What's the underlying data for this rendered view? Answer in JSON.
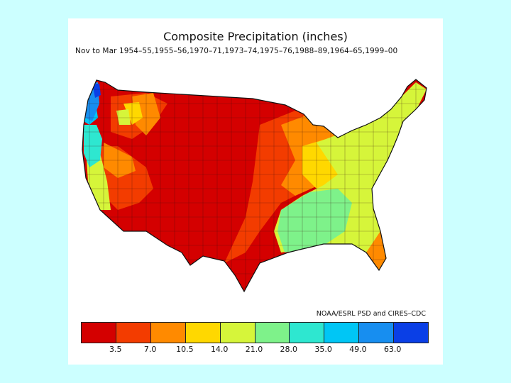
{
  "map": {
    "title": "Composite Precipitation (inches)",
    "subtitle": "Nov to Mar  1954–55,1955–56,1970–71,1973–74,1975–76,1988–89,1964–65,1999–00",
    "credit": "NOAA/ESRL PSD and CIRES–CDC",
    "legend": {
      "colors": [
        "#d40000",
        "#f33c00",
        "#ff8a00",
        "#ffd800",
        "#d6f53a",
        "#7ef28a",
        "#2ee7d0",
        "#00c6f5",
        "#178ef0",
        "#0a3fe6"
      ],
      "labels": [
        "3.5",
        "7.0",
        "10.5",
        "14.0",
        "21.0",
        "28.0",
        "35.0",
        "49.0",
        "63.0"
      ]
    }
  }
}
